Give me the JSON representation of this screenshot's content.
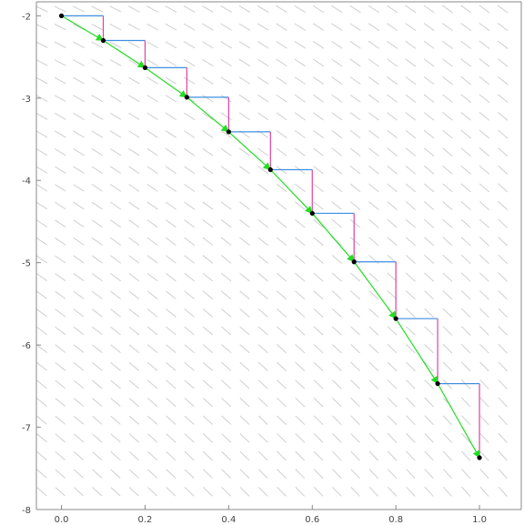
{
  "chart_data": {
    "type": "line",
    "title": "",
    "xlabel": "",
    "ylabel": "",
    "xlim": [
      -0.06,
      1.1
    ],
    "ylim": [
      -8,
      -1.83
    ],
    "x_ticks": [
      0.0,
      0.2,
      0.4,
      0.6,
      0.8,
      1.0
    ],
    "x_tick_labels": [
      "0.0",
      "0.2",
      "0.4",
      "0.6",
      "0.8",
      "1.0"
    ],
    "y_ticks": [
      -2,
      -3,
      -4,
      -5,
      -6,
      -7,
      -8
    ],
    "y_tick_labels": [
      "-2",
      "-3",
      "-4",
      "-5",
      "-6",
      "-7",
      "-8"
    ],
    "grid": false,
    "direction_field": true,
    "series": [
      {
        "x": [
          0.0,
          0.1,
          0.2,
          0.3,
          0.4,
          0.5,
          0.6,
          0.7,
          0.8,
          0.9,
          1.0
        ],
        "values": [
          -2.0,
          -2.3,
          -2.63,
          -2.99,
          -3.41,
          -3.87,
          -4.4,
          -4.99,
          -5.68,
          -6.47,
          -7.37
        ]
      }
    ],
    "colors": {
      "trajectory": "#22dd22",
      "step_horizontal": "#3d8fe0",
      "step_vertical": "#e040a0",
      "points": "#000000",
      "direction_field": "#cfcfcf"
    }
  }
}
